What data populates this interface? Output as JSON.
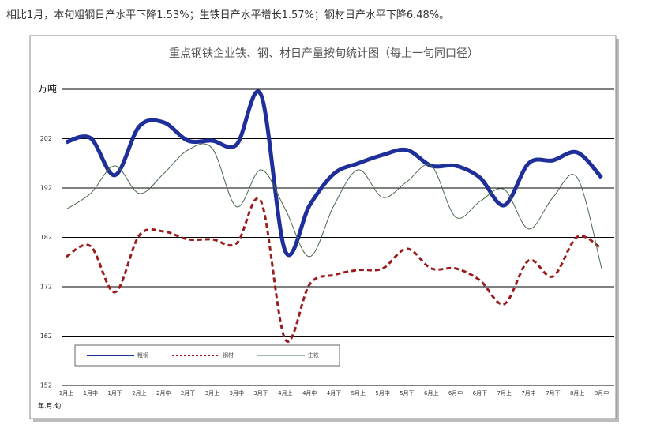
{
  "intro": "相比1月，本旬粗钢日产水平下降1.53%；生铁日产水平增长1.57%；钢材日产水平下降6.48%。",
  "chart_data": {
    "type": "line",
    "title": "重点钢铁企业铁、钢、材日产量按旬统计图（每上一旬同口径）",
    "y_label": "万吨",
    "x_label": "年.月.旬",
    "categories": [
      "1月上",
      "1月中",
      "1月下",
      "2月上",
      "2月中",
      "2月下",
      "3月上",
      "3月中",
      "3月下",
      "4月上",
      "4月中",
      "4月下",
      "5月上",
      "5月中",
      "5月下",
      "6月上",
      "6月中",
      "6月下",
      "7月上",
      "7月中",
      "7月下",
      "8月上",
      "8月中"
    ],
    "series": [
      {
        "name": "粗钢",
        "color": "#1f2f9a",
        "style": "solid",
        "width": 5,
        "values": [
          201.3,
          202.1,
          194.6,
          204.5,
          205.3,
          201.6,
          201.6,
          200.8,
          210.9,
          179.2,
          188.5,
          194.9,
          197,
          198.7,
          199.7,
          196.5,
          196.5,
          194.1,
          188.5,
          197,
          197.6,
          199.2,
          194.1
        ]
      },
      {
        "name": "钢材",
        "color": "#9b1c1c",
        "style": "dashed",
        "width": 3,
        "values": [
          178.1,
          180.2,
          170.9,
          182.4,
          183.2,
          181.6,
          181.6,
          180.8,
          189.3,
          161.3,
          172.5,
          174.4,
          175.4,
          175.7,
          179.7,
          175.7,
          175.7,
          173.3,
          168.5,
          177.3,
          174.1,
          182.1,
          179.7
        ]
      },
      {
        "name": "生铁",
        "color": "#4a6a4a",
        "style": "solid",
        "width": 1,
        "values": [
          187.7,
          190.9,
          196.5,
          190.9,
          194.9,
          199.7,
          200,
          188.2,
          195.7,
          187.7,
          178.1,
          188.5,
          195.7,
          190.1,
          193.3,
          196.5,
          186.1,
          189.3,
          191.7,
          183.7,
          190.1,
          194.1,
          175.7
        ]
      }
    ],
    "ylim": [
      152,
      212
    ],
    "yticks": [
      152,
      162,
      172,
      182,
      192,
      202
    ],
    "grid": true
  }
}
